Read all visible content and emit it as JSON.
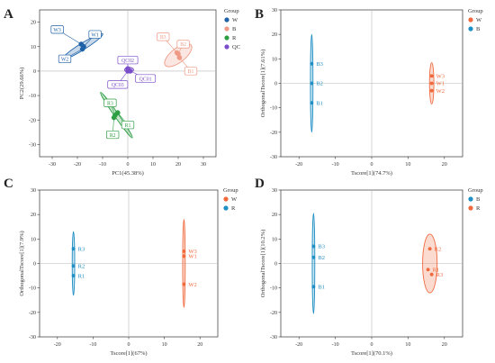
{
  "colors": {
    "W": "#1f62a8",
    "B": "#ef9a86",
    "R": "#2e9e45",
    "QC": "#7b4fc9",
    "B2W": "#1f8fc4",
    "W2": "#f06a3e",
    "B2R": "#1f8fc4",
    "axis": "#333333",
    "zero": "#b8b8b8"
  },
  "chart_data": [
    {
      "panel": "A",
      "type": "scatter",
      "xlabel": "PC1(45.38%)",
      "ylabel": "PC2(29.66%)",
      "xlim": [
        -35,
        35
      ],
      "ylim": [
        -35,
        25
      ],
      "xticks": [
        -30,
        -20,
        -10,
        0,
        10,
        20,
        30
      ],
      "yticks": [
        -30,
        -20,
        -10,
        0,
        10,
        20
      ],
      "legend_title": "Group",
      "legend": [
        "W",
        "B",
        "R",
        "QC"
      ],
      "series": [
        {
          "name": "W",
          "color_key": "W",
          "points": [
            {
              "label": "W3",
              "x": -18.5,
              "y": 11
            },
            {
              "label": "W1",
              "x": -17.5,
              "y": 10
            },
            {
              "label": "W2",
              "x": -18,
              "y": 9
            }
          ],
          "ellipse": {
            "cx": -18,
            "cy": 10,
            "a": 9.5,
            "b": 1.3,
            "angle": -32
          }
        },
        {
          "name": "B",
          "color_key": "B",
          "points": [
            {
              "label": "B3",
              "x": 19.5,
              "y": 7.5
            },
            {
              "label": "B2",
              "x": 20,
              "y": 7
            },
            {
              "label": "B1",
              "x": 20.5,
              "y": 5.5
            }
          ],
          "ellipse": {
            "cx": 20,
            "cy": 6.5,
            "a": 6.5,
            "b": 2.8,
            "angle": -38
          }
        },
        {
          "name": "R",
          "color_key": "R",
          "points": [
            {
              "label": "R1",
              "x": -4,
              "y": -17
            },
            {
              "label": "R3",
              "x": -5,
              "y": -18
            },
            {
              "label": "R2",
              "x": -5.5,
              "y": -19
            }
          ],
          "ellipse": {
            "cx": -4.5,
            "cy": -18,
            "a": 11,
            "b": 0.8,
            "angle": 55
          }
        },
        {
          "name": "QC",
          "color_key": "QC",
          "points": [
            {
              "label": "QC02",
              "x": 0,
              "y": 1
            },
            {
              "label": "QC01",
              "x": 1,
              "y": 0
            },
            {
              "label": "QC03",
              "x": 0,
              "y": 0
            }
          ],
          "ellipse": {
            "cx": 0.5,
            "cy": 0.5,
            "a": 1.8,
            "b": 1.0,
            "angle": 0
          }
        }
      ],
      "callouts": [
        {
          "label": "W3",
          "box": [
            -28,
            17
          ],
          "to": [
            -18.5,
            11
          ]
        },
        {
          "label": "W1",
          "box": [
            -13,
            15
          ],
          "to": [
            -17.5,
            10
          ]
        },
        {
          "label": "W2",
          "box": [
            -25,
            5
          ],
          "to": [
            -18,
            9
          ]
        },
        {
          "label": "B3",
          "box": [
            14,
            14
          ],
          "to": [
            19.5,
            7.5
          ]
        },
        {
          "label": "B2",
          "box": [
            22,
            11
          ],
          "to": [
            20,
            7
          ]
        },
        {
          "label": "B1",
          "box": [
            25,
            0
          ],
          "to": [
            20.5,
            5.5
          ]
        },
        {
          "label": "QC02",
          "box": [
            0,
            4.5
          ],
          "to": [
            0,
            1
          ]
        },
        {
          "label": "QC01",
          "box": [
            7,
            -3
          ],
          "to": [
            1,
            0
          ]
        },
        {
          "label": "QC03",
          "box": [
            -4,
            -5.5
          ],
          "to": [
            0,
            0
          ]
        },
        {
          "label": "R3",
          "box": [
            -7,
            -13
          ],
          "to": [
            -5,
            -18
          ]
        },
        {
          "label": "R1",
          "box": [
            0,
            -22
          ],
          "to": [
            -4,
            -17
          ]
        },
        {
          "label": "R2",
          "box": [
            -6,
            -26
          ],
          "to": [
            -5.5,
            -19
          ]
        }
      ]
    },
    {
      "panel": "B",
      "type": "scatter",
      "xlabel": "Tscore[1](74.7%)",
      "ylabel": "OrthogonalTscore[1](7.61%)",
      "xlim": [
        -25,
        25
      ],
      "ylim": [
        -30,
        30
      ],
      "xticks": [
        -20,
        -10,
        0,
        10,
        20
      ],
      "yticks": [
        -30,
        -20,
        -10,
        0,
        10,
        20,
        30
      ],
      "legend_title": "Group",
      "legend": [
        "W",
        "B"
      ],
      "series": [
        {
          "name": "B",
          "color_key": "B2W",
          "points": [
            {
              "label": "B3",
              "x": -16.5,
              "y": 8
            },
            {
              "label": "B2",
              "x": -16.5,
              "y": 0
            },
            {
              "label": "B1",
              "x": -16.5,
              "y": -8
            }
          ],
          "ellipse": {
            "cx": -16.5,
            "cy": 0,
            "a": 0.35,
            "b": 20,
            "angle": 0
          }
        },
        {
          "name": "W",
          "color_key": "W2",
          "points": [
            {
              "label": "W3",
              "x": 16.5,
              "y": 3
            },
            {
              "label": "W1",
              "x": 16.5,
              "y": 0
            },
            {
              "label": "W2",
              "x": 16.5,
              "y": -3
            }
          ],
          "ellipse": {
            "cx": 16.5,
            "cy": 0,
            "a": 0.6,
            "b": 8.5,
            "angle": 0
          }
        }
      ]
    },
    {
      "panel": "C",
      "type": "scatter",
      "xlabel": "Tscore[1](67%)",
      "ylabel": "OrthogonalTscore[1](7.9%)",
      "xlim": [
        -25,
        25
      ],
      "ylim": [
        -30,
        30
      ],
      "xticks": [
        -20,
        -10,
        0,
        10,
        20
      ],
      "yticks": [
        -30,
        -20,
        -10,
        0,
        10,
        20,
        30
      ],
      "legend_title": "Group",
      "legend": [
        "W",
        "R"
      ],
      "series": [
        {
          "name": "R",
          "color_key": "B2R",
          "points": [
            {
              "label": "R3",
              "x": -15.5,
              "y": 6
            },
            {
              "label": "R2",
              "x": -15.5,
              "y": -1
            },
            {
              "label": "R1",
              "x": -15.5,
              "y": -5
            }
          ],
          "ellipse": {
            "cx": -15.5,
            "cy": 0,
            "a": 0.35,
            "b": 13,
            "angle": 0
          }
        },
        {
          "name": "W",
          "color_key": "W2",
          "points": [
            {
              "label": "W3",
              "x": 15.5,
              "y": 5
            },
            {
              "label": "W1",
              "x": 15.5,
              "y": 3
            },
            {
              "label": "W2",
              "x": 15.5,
              "y": -8.5
            }
          ],
          "ellipse": {
            "cx": 15.5,
            "cy": 0,
            "a": 0.35,
            "b": 18,
            "angle": 0
          }
        }
      ]
    },
    {
      "panel": "D",
      "type": "scatter",
      "xlabel": "Tscore[1](70.1%)",
      "ylabel": "OrthogonalTscore[1](10.2%)",
      "xlim": [
        -25,
        25
      ],
      "ylim": [
        -30,
        30
      ],
      "xticks": [
        -20,
        -10,
        0,
        10,
        20
      ],
      "yticks": [
        -30,
        -20,
        -10,
        0,
        10,
        20,
        30
      ],
      "legend_title": "Group",
      "legend": [
        "B",
        "R"
      ],
      "series": [
        {
          "name": "B",
          "color_key": "B2W",
          "points": [
            {
              "label": "B3",
              "x": -16,
              "y": 7
            },
            {
              "label": "B2",
              "x": -16,
              "y": 2.5
            },
            {
              "label": "B1",
              "x": -16,
              "y": -9.5
            }
          ],
          "ellipse": {
            "cx": -16,
            "cy": 0,
            "a": 0.35,
            "b": 20.5,
            "angle": 0
          }
        },
        {
          "name": "R",
          "color_key": "W2",
          "points": [
            {
              "label": "R2",
              "x": 16,
              "y": 6
            },
            {
              "label": "R1",
              "x": 15.5,
              "y": -2.5
            },
            {
              "label": "R3",
              "x": 16.5,
              "y": -4.5
            }
          ],
          "ellipse": {
            "cx": 16,
            "cy": 0,
            "a": 2.0,
            "b": 12,
            "angle": 0
          }
        }
      ]
    }
  ]
}
